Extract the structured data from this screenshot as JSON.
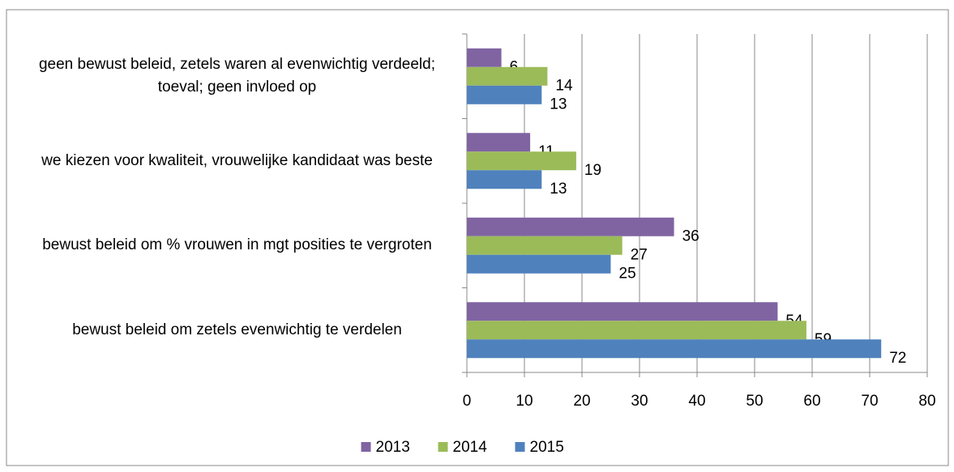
{
  "chart_data": {
    "type": "hbar",
    "categories": [
      "geen bewust beleid, zetels waren al evenwichtig verdeeld; toeval; geen invloed op",
      "we kiezen voor kwaliteit, vrouwelijke kandidaat was beste",
      "bewust beleid om % vrouwen in mgt posities te vergroten",
      "bewust beleid om zetels evenwichtig te verdelen"
    ],
    "series": [
      {
        "name": "2013",
        "color": "#8064a2",
        "values": [
          6,
          11,
          36,
          54
        ]
      },
      {
        "name": "2014",
        "color": "#9bbb59",
        "values": [
          14,
          19,
          27,
          59
        ]
      },
      {
        "name": "2015",
        "color": "#4f81bd",
        "values": [
          13,
          13,
          25,
          72
        ]
      }
    ],
    "xlim": [
      0,
      80
    ],
    "xticks": [
      0,
      10,
      20,
      30,
      40,
      50,
      60,
      70,
      80
    ],
    "grid": true,
    "legend": "bottom"
  }
}
